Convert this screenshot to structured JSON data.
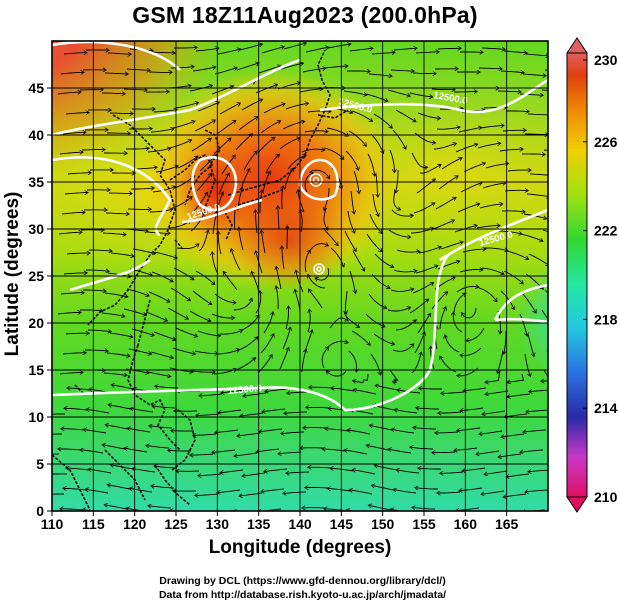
{
  "title": "GSM 18Z11Aug2023 (200.0hPa)",
  "x_axis": {
    "label": "Longitude (degrees)",
    "range": [
      110,
      170
    ],
    "ticks": [
      "110",
      "115",
      "120",
      "125",
      "130",
      "135",
      "140",
      "145",
      "150",
      "155",
      "160",
      "165"
    ]
  },
  "y_axis": {
    "label": "Latitude  (degrees)",
    "range": [
      0,
      50
    ],
    "ticks": [
      "0",
      "5",
      "10",
      "15",
      "20",
      "25",
      "30",
      "35",
      "40",
      "45"
    ]
  },
  "colorbar": {
    "range": [
      210,
      230
    ],
    "tick_labels": [
      "230",
      "226",
      "222",
      "218",
      "214",
      "210"
    ],
    "colors": [
      "#e01060",
      "#c838c8",
      "#2a2aa8",
      "#2a72e0",
      "#22c8e0",
      "#22e8a0",
      "#32d832",
      "#a0e010",
      "#f0d000",
      "#f08a00",
      "#e04010",
      "#e06060"
    ]
  },
  "contour_labels": [
    "12500.0",
    "12500.0",
    "12500.0",
    "12500.0",
    "12500.0"
  ],
  "credits": {
    "line1": "Drawing by DCL (https://www.gfd-dennou.org/library/dcl/)",
    "line2": "Data from http://database.rish.kyoto-u.ac.jp/arch/jmadata/"
  }
}
